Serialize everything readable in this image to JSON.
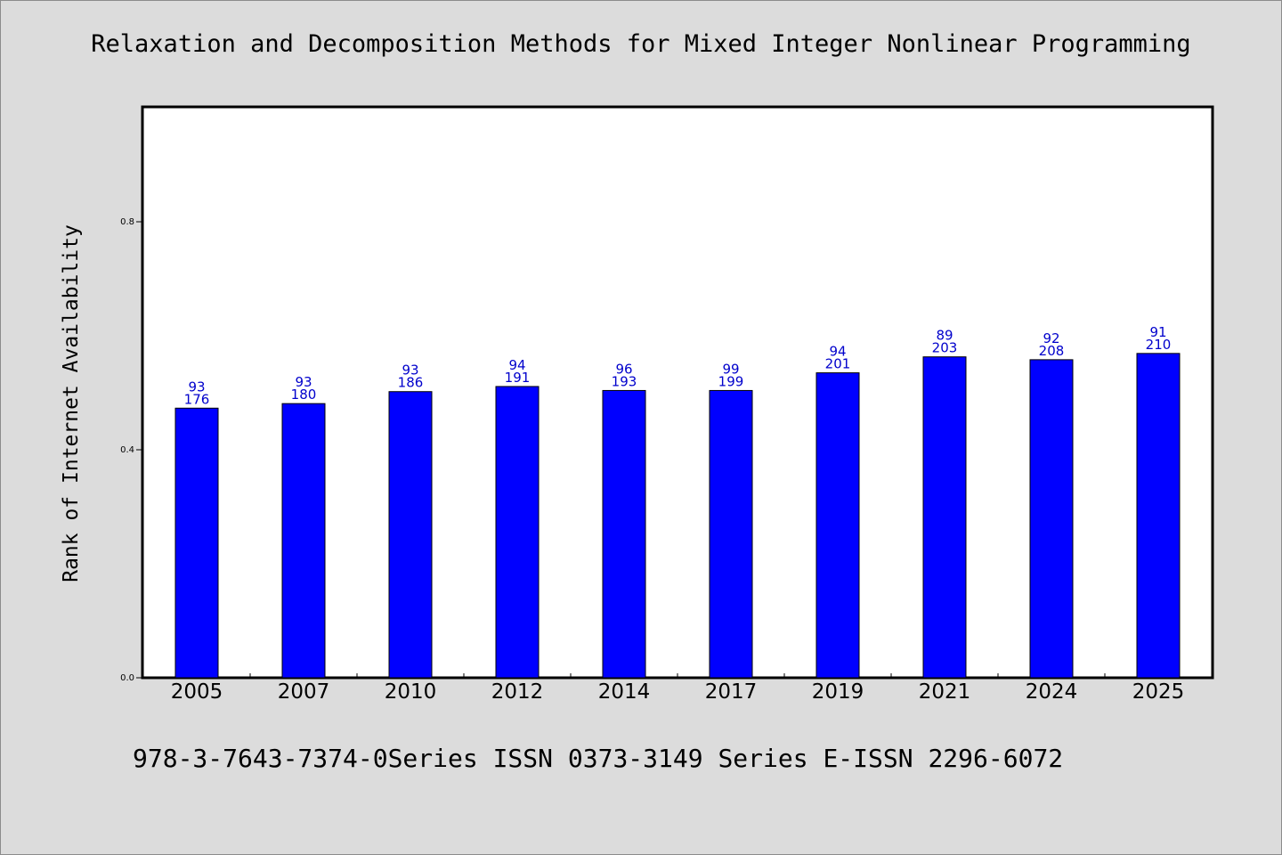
{
  "page": {
    "background": "#dcdcdc"
  },
  "chart_data": {
    "type": "bar",
    "title": "Relaxation and Decomposition Methods for Mixed Integer Nonlinear Programming",
    "ylabel": "Rank of Internet Availability",
    "xlabel": "",
    "categories": [
      "2005",
      "2007",
      "2010",
      "2012",
      "2014",
      "2017",
      "2019",
      "2021",
      "2024",
      "2025"
    ],
    "values": [
      0.473,
      0.481,
      0.502,
      0.511,
      0.504,
      0.504,
      0.535,
      0.563,
      0.558,
      0.569
    ],
    "labels_top": [
      "93",
      "93",
      "93",
      "94",
      "96",
      "99",
      "94",
      "89",
      "92",
      "91"
    ],
    "labels_bottom": [
      "176",
      "180",
      "186",
      "191",
      "193",
      "199",
      "201",
      "203",
      "208",
      "210"
    ],
    "ylim": [
      0,
      1.0
    ],
    "yticks": [
      0.0,
      0.4,
      0.8
    ],
    "ytick_labels": [
      "0.0",
      "0.4",
      "0.8"
    ],
    "grid": false,
    "bar_color": "#0000ff",
    "label_color": "#0000cc",
    "plot_background": "#ffffff"
  },
  "footer": "978-3-7643-7374-0Series ISSN 0373-3149 Series E-ISSN 2296-6072"
}
